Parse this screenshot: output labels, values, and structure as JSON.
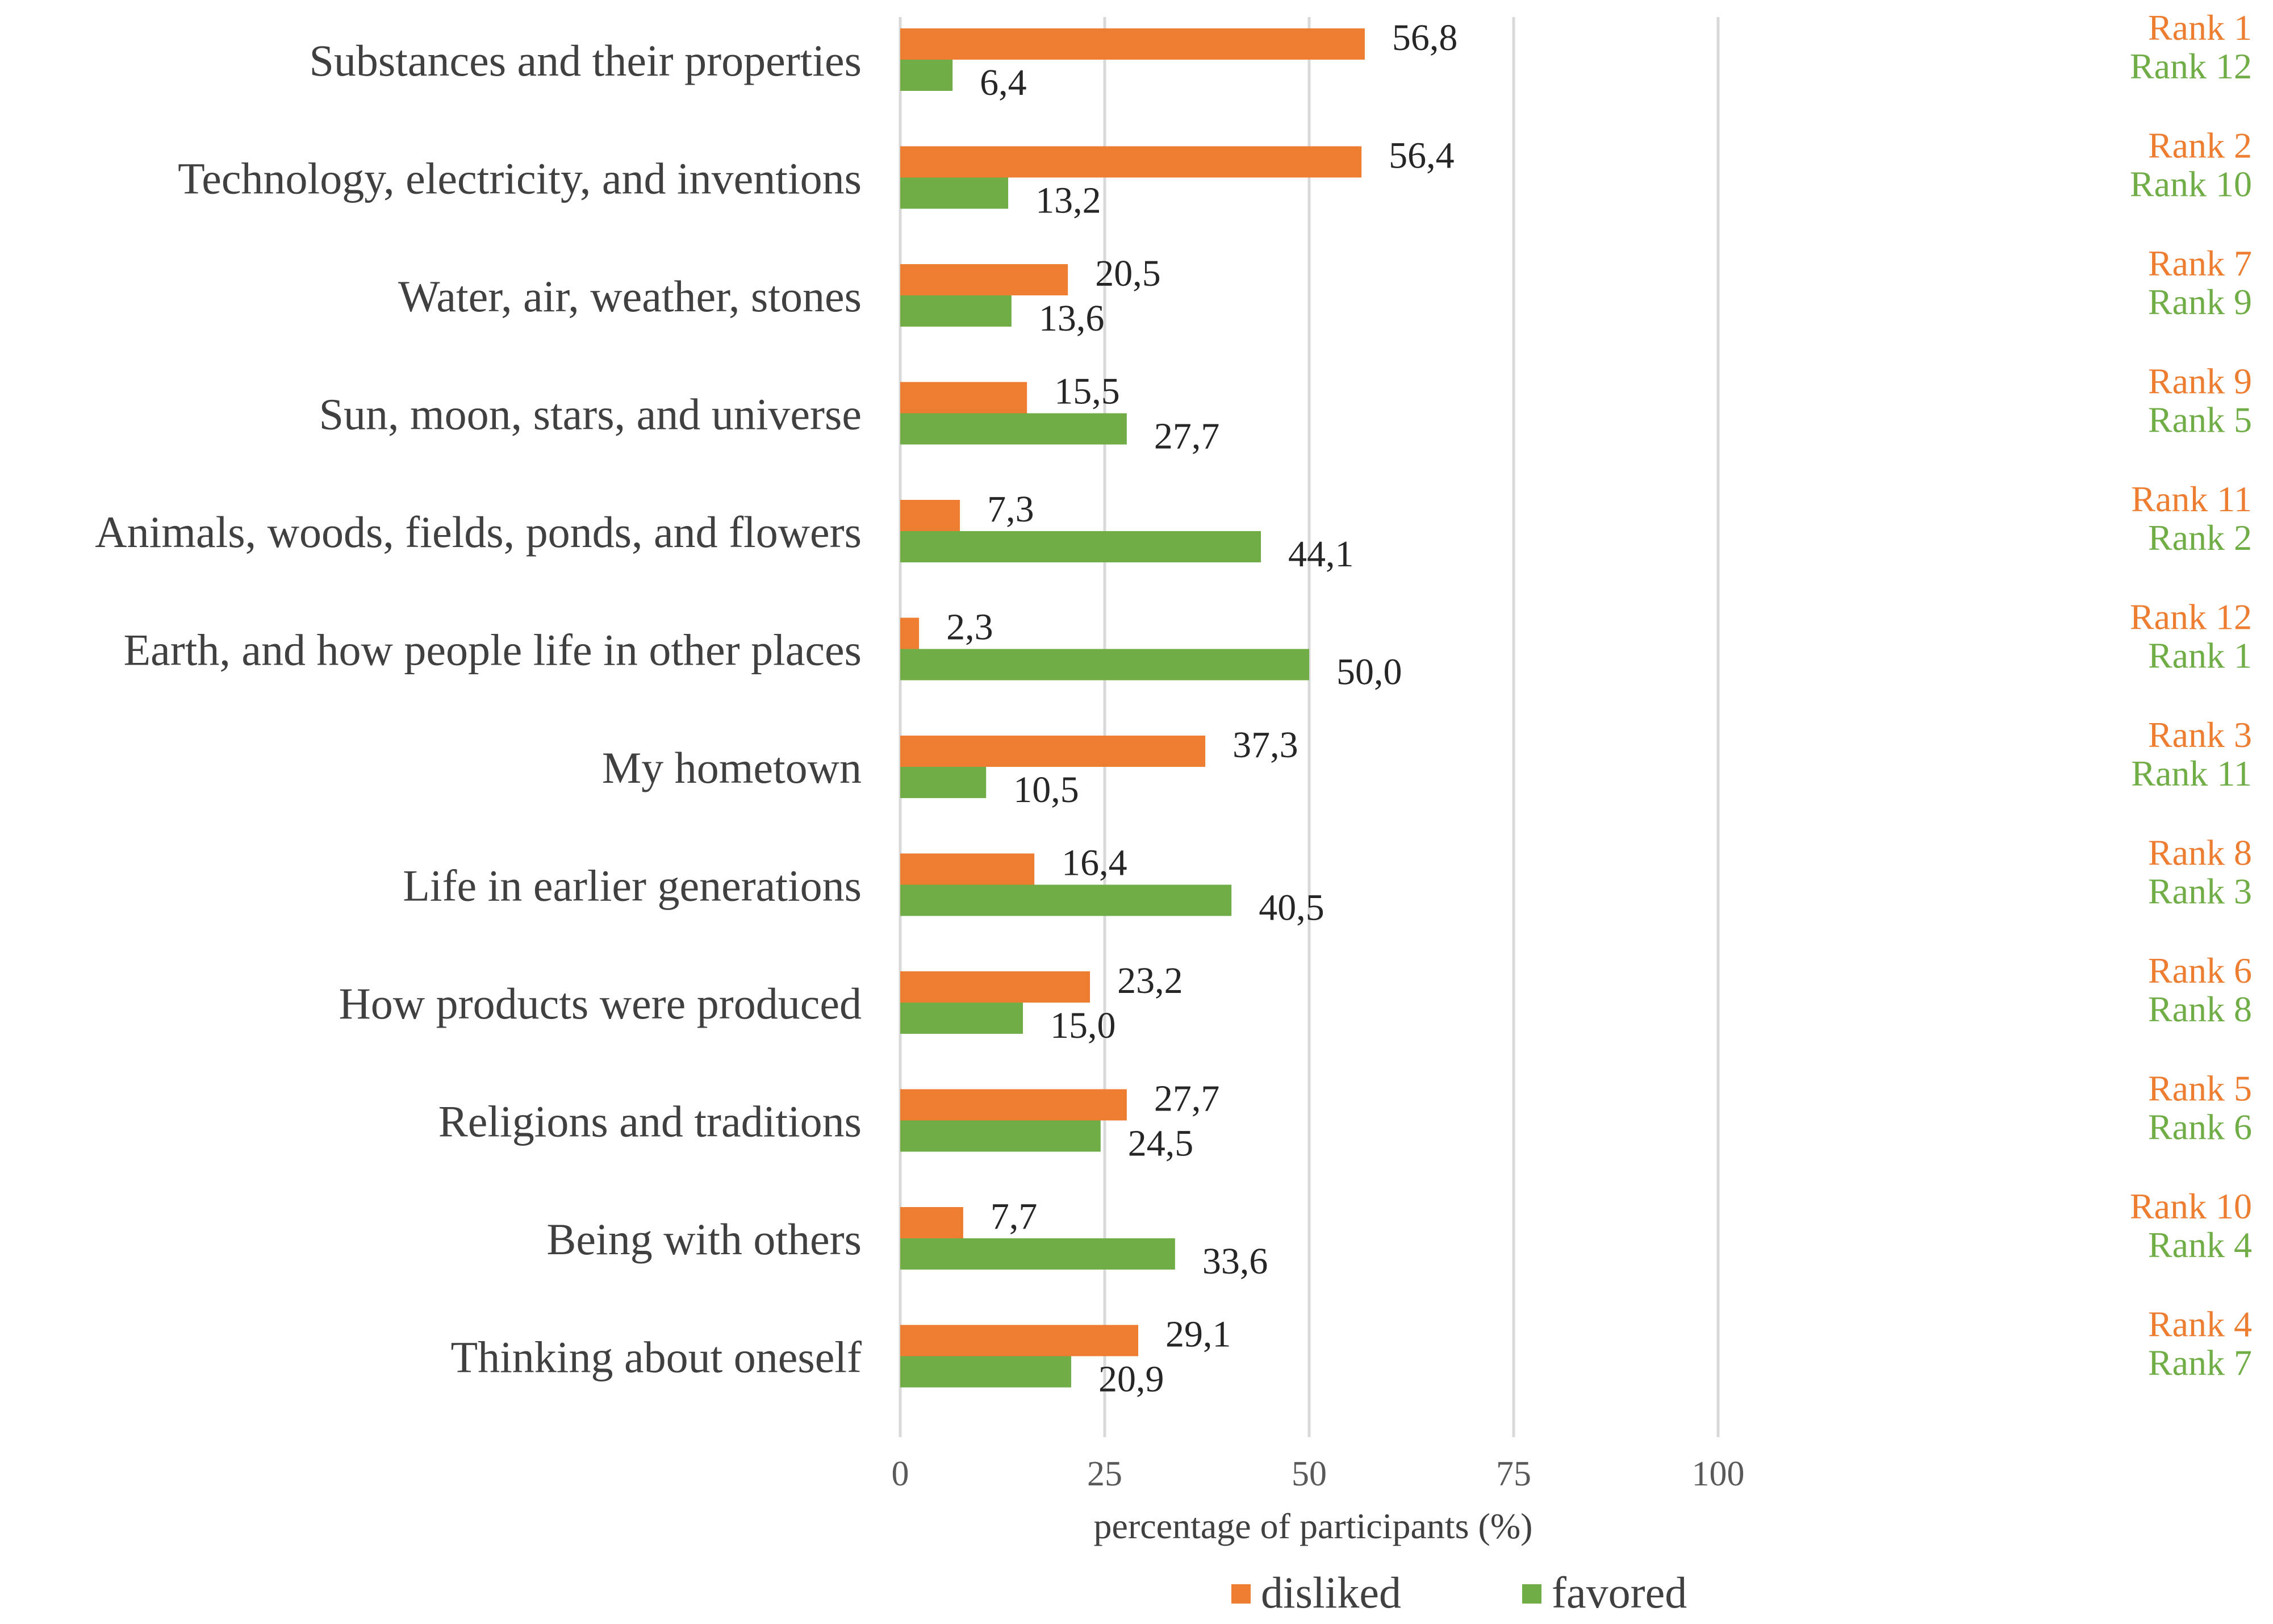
{
  "chart_data": {
    "type": "bar",
    "orientation": "horizontal",
    "categories": [
      "Substances and their properties",
      "Technology, electricity, and inventions",
      "Water, air, weather, stones",
      "Sun, moon, stars, and universe",
      "Animals, woods, fields, ponds, and flowers",
      "Earth, and how people life in other places",
      "My hometown",
      "Life in earlier generations",
      "How products were produced",
      "Religions and traditions",
      "Being with others",
      "Thinking about oneself"
    ],
    "series": [
      {
        "name": "disliked",
        "color": "#ED7D31",
        "values": [
          56.8,
          56.4,
          20.5,
          15.5,
          7.3,
          2.3,
          37.3,
          16.4,
          23.2,
          27.7,
          7.7,
          29.1
        ],
        "labels": [
          "56,8",
          "56,4",
          "20,5",
          "15,5",
          "7,3",
          "2,3",
          "37,3",
          "16,4",
          "23,2",
          "27,7",
          "7,7",
          "29,1"
        ],
        "ranks": [
          "Rank 1",
          "Rank 2",
          "Rank 7",
          "Rank 9",
          "Rank 11",
          "Rank 12",
          "Rank 3",
          "Rank 8",
          "Rank 6",
          "Rank 5",
          "Rank 10",
          "Rank 4"
        ]
      },
      {
        "name": "favored",
        "color": "#70AD47",
        "values": [
          6.4,
          13.2,
          13.6,
          27.7,
          44.1,
          50.0,
          10.5,
          40.5,
          15.0,
          24.5,
          33.6,
          20.9
        ],
        "labels": [
          "6,4",
          "13,2",
          "13,6",
          "27,7",
          "44,1",
          "50,0",
          "10,5",
          "40,5",
          "15,0",
          "24,5",
          "33,6",
          "20,9"
        ],
        "ranks": [
          "Rank 12",
          "Rank 10",
          "Rank 9",
          "Rank 5",
          "Rank 2",
          "Rank 1",
          "Rank 11",
          "Rank 3",
          "Rank 8",
          "Rank 6",
          "Rank 4",
          "Rank 7"
        ]
      }
    ],
    "xlabel": "percentage of participants (%)",
    "ylabel": "",
    "xlim": [
      0,
      100
    ],
    "xticks": [
      0,
      25,
      50,
      75,
      100
    ],
    "xtick_labels": [
      "0",
      "25",
      "50",
      "75",
      "100"
    ],
    "grid": true,
    "legend_position": "bottom",
    "gridline_color": "#D9D9D9"
  }
}
